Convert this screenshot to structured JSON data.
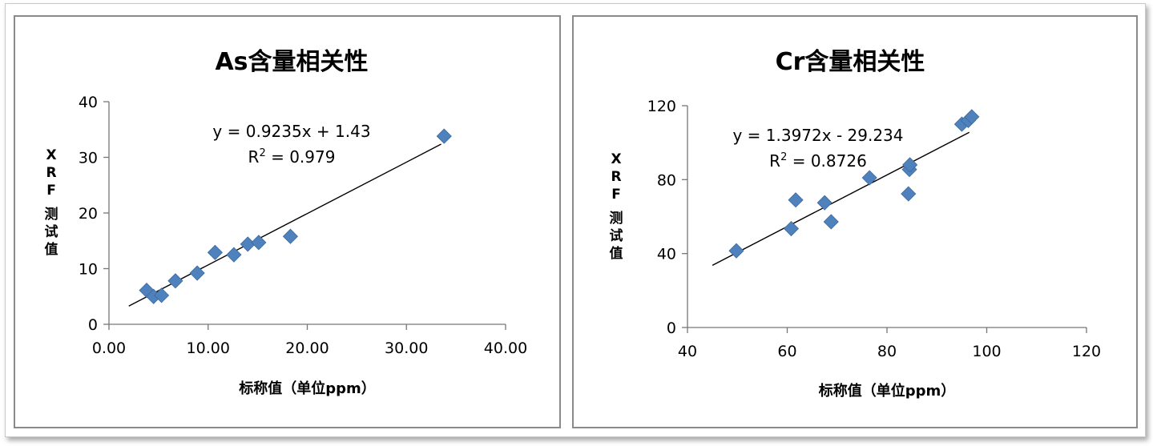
{
  "chart_data": [
    {
      "type": "scatter",
      "title": "As含量相关性",
      "xlabel": "标称值（单位ppm）",
      "ylabel": "XRF测试值",
      "ylabel_chars": [
        "X",
        "R",
        "F",
        "测",
        "试",
        "值"
      ],
      "xlim": [
        0,
        40
      ],
      "ylim": [
        0,
        40
      ],
      "x_ticks": [
        "0.00",
        "10.00",
        "20.00",
        "30.00",
        "40.00"
      ],
      "y_ticks": [
        "0",
        "10",
        "20",
        "30",
        "40"
      ],
      "grid": false,
      "legend": "none",
      "marker": "diamond",
      "marker_color": "#4F81BD",
      "series": [
        {
          "points": [
            [
              3.8,
              6.1
            ],
            [
              4.5,
              5.0
            ],
            [
              5.3,
              5.2
            ],
            [
              6.7,
              7.8
            ],
            [
              8.9,
              9.2
            ],
            [
              10.7,
              12.9
            ],
            [
              12.6,
              12.5
            ],
            [
              14.0,
              14.4
            ],
            [
              15.1,
              14.7
            ],
            [
              18.3,
              15.8
            ],
            [
              33.8,
              33.8
            ]
          ]
        }
      ],
      "trendline": {
        "slope": 0.9235,
        "intercept": 1.43,
        "x_range": [
          2.0,
          33.5
        ],
        "equation": "y = 0.9235x + 1.43",
        "r2_prefix": "R",
        "r2_exp": "2",
        "r2_value": " = 0.979"
      }
    },
    {
      "type": "scatter",
      "title": "Cr含量相关性",
      "xlabel": "标称值（单位ppm）",
      "ylabel": "XRF测试值",
      "ylabel_chars": [
        "X",
        "R",
        "F",
        "测",
        "试",
        "值"
      ],
      "xlim": [
        40,
        120
      ],
      "ylim": [
        0,
        120
      ],
      "x_ticks": [
        "40",
        "60",
        "80",
        "100",
        "120"
      ],
      "y_ticks": [
        "0",
        "40",
        "80",
        "120"
      ],
      "grid": false,
      "legend": "none",
      "marker": "diamond",
      "marker_color": "#4F81BD",
      "series": [
        {
          "points": [
            [
              49.8,
              41.5
            ],
            [
              60.8,
              53.5
            ],
            [
              61.7,
              69.0
            ],
            [
              67.5,
              67.5
            ],
            [
              68.8,
              57.2
            ],
            [
              76.5,
              81.0
            ],
            [
              84.3,
              72.3
            ],
            [
              84.5,
              85.5
            ],
            [
              84.6,
              88.0
            ],
            [
              95.0,
              110.0
            ],
            [
              96.3,
              112.0
            ],
            [
              97.0,
              114.0
            ]
          ]
        }
      ],
      "trendline": {
        "slope": 1.3972,
        "intercept": -29.234,
        "x_range": [
          45.0,
          96.5
        ],
        "equation": "y = 1.3972x - 29.234",
        "r2_prefix": "R",
        "r2_exp": "2",
        "r2_value": " = 0.8726"
      }
    }
  ]
}
